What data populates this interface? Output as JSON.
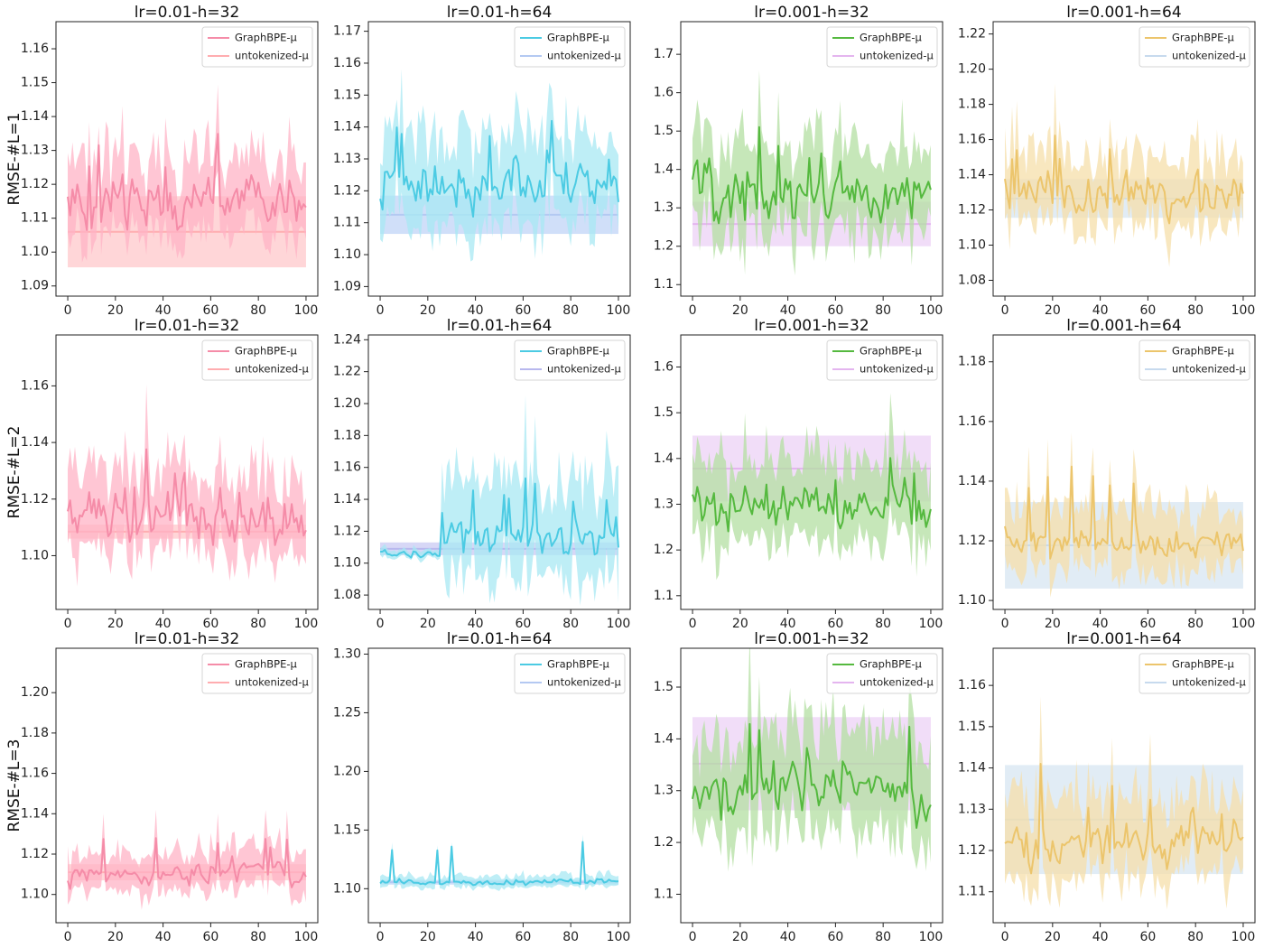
{
  "x_domain": [
    0,
    100
  ],
  "x_ticks": [
    0,
    20,
    40,
    60,
    80,
    100
  ],
  "row_labels": [
    "RMSE-#L=1",
    "RMSE-#L=2",
    "RMSE-#L=3"
  ],
  "legend_labels": [
    "GraphBPE-μ",
    "untokenized-μ"
  ],
  "chart_data": [
    {
      "type": "line",
      "row": 0,
      "col": 0,
      "title": "lr=0.01-h=32",
      "ylim": [
        1.087,
        1.168
      ],
      "yticks": [
        1.09,
        1.1,
        1.11,
        1.12,
        1.13,
        1.14,
        1.15,
        1.16
      ],
      "tick_labels": [
        "1.09",
        "1.10",
        "1.11",
        "1.12",
        "1.13",
        "1.14",
        "1.15",
        "1.16"
      ],
      "series": [
        {
          "name": "GraphBPE-μ",
          "kind": "noisy",
          "center": 1.115,
          "amp": 0.006,
          "band": 0.011,
          "spike_p": 0.04,
          "spike_amp": 0.018,
          "color": "#f58ca8",
          "fill": "#ffb3c6"
        },
        {
          "name": "untokenized-μ",
          "kind": "flat",
          "value": 1.106,
          "band": 0.0105,
          "color": "#ffadb0",
          "fill": "#ffc8cb"
        }
      ]
    },
    {
      "type": "line",
      "row": 0,
      "col": 1,
      "title": "lr=0.01-h=64",
      "ylim": [
        1.087,
        1.173
      ],
      "yticks": [
        1.09,
        1.1,
        1.11,
        1.12,
        1.13,
        1.14,
        1.15,
        1.16,
        1.17
      ],
      "tick_labels": [
        "1.09",
        "1.10",
        "1.11",
        "1.12",
        "1.13",
        "1.14",
        "1.15",
        "1.16",
        "1.17"
      ],
      "series": [
        {
          "name": "GraphBPE-μ",
          "kind": "noisy",
          "center": 1.122,
          "amp": 0.006,
          "band": 0.014,
          "spike_p": 0.04,
          "spike_amp": 0.015,
          "color": "#4ccbe3",
          "fill": "#a8e8f3"
        },
        {
          "name": "untokenized-μ",
          "kind": "flat",
          "value": 1.1125,
          "band": 0.006,
          "color": "#b4c9f2",
          "fill": "#c0d4f7"
        }
      ]
    },
    {
      "type": "line",
      "row": 0,
      "col": 2,
      "title": "lr=0.001-h=32",
      "ylim": [
        1.07,
        1.785
      ],
      "yticks": [
        1.1,
        1.2,
        1.3,
        1.4,
        1.5,
        1.6,
        1.7
      ],
      "tick_labels": [
        "1.1",
        "1.2",
        "1.3",
        "1.4",
        "1.5",
        "1.6",
        "1.7"
      ],
      "series": [
        {
          "name": "GraphBPE-μ",
          "kind": "noisy",
          "center": 1.33,
          "amp": 0.05,
          "band": 0.12,
          "spike_p": 0.03,
          "spike_amp": 0.12,
          "color": "#55b93f",
          "fill": "#b3dfa2"
        },
        {
          "name": "untokenized-μ",
          "kind": "flat",
          "value": 1.258,
          "band": 0.058,
          "color": "#e4b5ef",
          "fill": "#ecd2f6"
        }
      ]
    },
    {
      "type": "line",
      "row": 0,
      "col": 3,
      "title": "lr=0.001-h=64",
      "ylim": [
        1.071,
        1.227
      ],
      "yticks": [
        1.08,
        1.1,
        1.12,
        1.14,
        1.16,
        1.18,
        1.2,
        1.22
      ],
      "tick_labels": [
        "1.08",
        "1.10",
        "1.12",
        "1.14",
        "1.16",
        "1.18",
        "1.20",
        "1.22"
      ],
      "series": [
        {
          "name": "GraphBPE-μ",
          "kind": "noisy",
          "center": 1.128,
          "amp": 0.008,
          "band": 0.02,
          "spike_p": 0.05,
          "spike_amp": 0.03,
          "color": "#ecc56c",
          "fill": "#f5dfaa"
        },
        {
          "name": "untokenized-μ",
          "kind": "flat",
          "value": 1.1265,
          "band": 0.011,
          "color": "#c7daee",
          "fill": "#d7e5f2"
        }
      ]
    },
    {
      "type": "line",
      "row": 1,
      "col": 0,
      "title": "lr=0.01-h=32",
      "ylim": [
        1.081,
        1.178
      ],
      "yticks": [
        1.1,
        1.12,
        1.14,
        1.16
      ],
      "tick_labels": [
        "1.10",
        "1.12",
        "1.14",
        "1.16"
      ],
      "series": [
        {
          "name": "GraphBPE-μ",
          "kind": "noisy",
          "center": 1.114,
          "amp": 0.007,
          "band": 0.015,
          "spike_p": 0.1,
          "spike_amp": 0.018,
          "color": "#f58ca8",
          "fill": "#ffb3c6"
        },
        {
          "name": "untokenized-μ",
          "kind": "flat",
          "value": 1.1085,
          "band": 0.0025,
          "color": "#ffadb0",
          "fill": "#ffc8cb"
        }
      ]
    },
    {
      "type": "line",
      "row": 1,
      "col": 1,
      "title": "lr=0.01-h=64",
      "ylim": [
        1.071,
        1.243
      ],
      "yticks": [
        1.08,
        1.1,
        1.12,
        1.14,
        1.16,
        1.18,
        1.2,
        1.22,
        1.24
      ],
      "tick_labels": [
        "1.08",
        "1.10",
        "1.12",
        "1.14",
        "1.16",
        "1.18",
        "1.20",
        "1.22",
        "1.24"
      ],
      "series": [
        {
          "name": "GraphBPE-μ",
          "kind": "late",
          "center": 1.116,
          "amp": 0.008,
          "band": 0.032,
          "start": 26,
          "pre_center": 1.106,
          "pre_amp": 0.002,
          "pre_band": 0.003,
          "spike_p": 0.12,
          "spike_amp": 0.03,
          "color": "#4ccbe3",
          "fill": "#a8e8f3"
        },
        {
          "name": "untokenized-μ",
          "kind": "flat",
          "value": 1.109,
          "band": 0.004,
          "color": "#b8b8ee",
          "fill": "#c9c9f3"
        }
      ]
    },
    {
      "type": "line",
      "row": 1,
      "col": 2,
      "title": "lr=0.001-h=32",
      "ylim": [
        1.07,
        1.67
      ],
      "yticks": [
        1.1,
        1.2,
        1.3,
        1.4,
        1.5,
        1.6
      ],
      "tick_labels": [
        "1.1",
        "1.2",
        "1.3",
        "1.4",
        "1.5",
        "1.6"
      ],
      "series": [
        {
          "name": "GraphBPE-μ",
          "kind": "noisy",
          "center": 1.29,
          "amp": 0.035,
          "band": 0.09,
          "spike_p": 0.04,
          "spike_amp": 0.08,
          "color": "#55b93f",
          "fill": "#b3dfa2"
        },
        {
          "name": "untokenized-μ",
          "kind": "flat",
          "value": 1.378,
          "band": 0.072,
          "color": "#e4b5ef",
          "fill": "#ecd2f6"
        }
      ]
    },
    {
      "type": "line",
      "row": 1,
      "col": 3,
      "title": "lr=0.001-h=64",
      "ylim": [
        1.097,
        1.189
      ],
      "yticks": [
        1.1,
        1.12,
        1.14,
        1.16,
        1.18
      ],
      "tick_labels": [
        "1.10",
        "1.12",
        "1.14",
        "1.16",
        "1.18"
      ],
      "series": [
        {
          "name": "GraphBPE-μ",
          "kind": "noisy",
          "center": 1.12,
          "amp": 0.004,
          "band": 0.011,
          "spike_p": 0.08,
          "spike_amp": 0.02,
          "color": "#ecc56c",
          "fill": "#f5dfaa"
        },
        {
          "name": "untokenized-μ",
          "kind": "flat",
          "value": 1.1185,
          "band": 0.0145,
          "color": "#c7daee",
          "fill": "#d7e5f2"
        }
      ]
    },
    {
      "type": "line",
      "row": 2,
      "col": 0,
      "title": "lr=0.01-h=32",
      "ylim": [
        1.086,
        1.222
      ],
      "yticks": [
        1.1,
        1.12,
        1.14,
        1.16,
        1.18,
        1.2
      ],
      "tick_labels": [
        "1.10",
        "1.12",
        "1.14",
        "1.16",
        "1.18",
        "1.20"
      ],
      "series": [
        {
          "name": "GraphBPE-μ",
          "kind": "noisy",
          "center": 1.111,
          "amp": 0.004,
          "band": 0.01,
          "spike_p": 0.05,
          "spike_amp": 0.015,
          "color": "#f58ca8",
          "fill": "#ffb3c6"
        },
        {
          "name": "untokenized-μ",
          "kind": "flat",
          "value": 1.111,
          "band": 0.004,
          "color": "#ffadb0",
          "fill": "#ffc8cb"
        }
      ]
    },
    {
      "type": "line",
      "row": 2,
      "col": 1,
      "title": "lr=0.01-h=64",
      "ylim": [
        1.071,
        1.305
      ],
      "yticks": [
        1.1,
        1.15,
        1.2,
        1.25,
        1.3
      ],
      "tick_labels": [
        "1.10",
        "1.15",
        "1.20",
        "1.25",
        "1.30"
      ],
      "series": [
        {
          "name": "GraphBPE-μ",
          "kind": "noisy",
          "center": 1.106,
          "amp": 0.002,
          "band": 0.005,
          "spike_p": 0.1,
          "spike_amp": 0.035,
          "color": "#4ccbe3",
          "fill": "#a8e8f3"
        },
        {
          "name": "untokenized-μ",
          "kind": "flat",
          "value": 1.1055,
          "band": 0.002,
          "color": "#b4c9f2",
          "fill": "#c0d4f7"
        }
      ]
    },
    {
      "type": "line",
      "row": 2,
      "col": 2,
      "title": "lr=0.001-h=32",
      "ylim": [
        1.045,
        1.575
      ],
      "yticks": [
        1.1,
        1.2,
        1.3,
        1.4,
        1.5
      ],
      "tick_labels": [
        "1.1",
        "1.2",
        "1.3",
        "1.4",
        "1.5"
      ],
      "series": [
        {
          "name": "GraphBPE-μ",
          "kind": "noisy",
          "center": 1.3,
          "amp": 0.04,
          "band": 0.1,
          "spike_p": 0.04,
          "spike_amp": 0.09,
          "color": "#55b93f",
          "fill": "#b3dfa2"
        },
        {
          "name": "untokenized-μ",
          "kind": "flat",
          "value": 1.352,
          "band": 0.09,
          "color": "#e4b5ef",
          "fill": "#ecd2f6"
        }
      ]
    },
    {
      "type": "line",
      "row": 2,
      "col": 3,
      "title": "lr=0.001-h=64",
      "ylim": [
        1.1025,
        1.169
      ],
      "yticks": [
        1.11,
        1.12,
        1.13,
        1.14,
        1.15,
        1.16
      ],
      "tick_labels": [
        "1.11",
        "1.12",
        "1.13",
        "1.14",
        "1.15",
        "1.16"
      ],
      "series": [
        {
          "name": "GraphBPE-μ",
          "kind": "noisy",
          "center": 1.122,
          "amp": 0.004,
          "band": 0.01,
          "spike_p": 0.06,
          "spike_amp": 0.015,
          "color": "#ecc56c",
          "fill": "#f5dfaa"
        },
        {
          "name": "untokenized-μ",
          "kind": "flat",
          "value": 1.1275,
          "band": 0.0132,
          "color": "#c7daee",
          "fill": "#d7e5f2"
        }
      ]
    }
  ]
}
